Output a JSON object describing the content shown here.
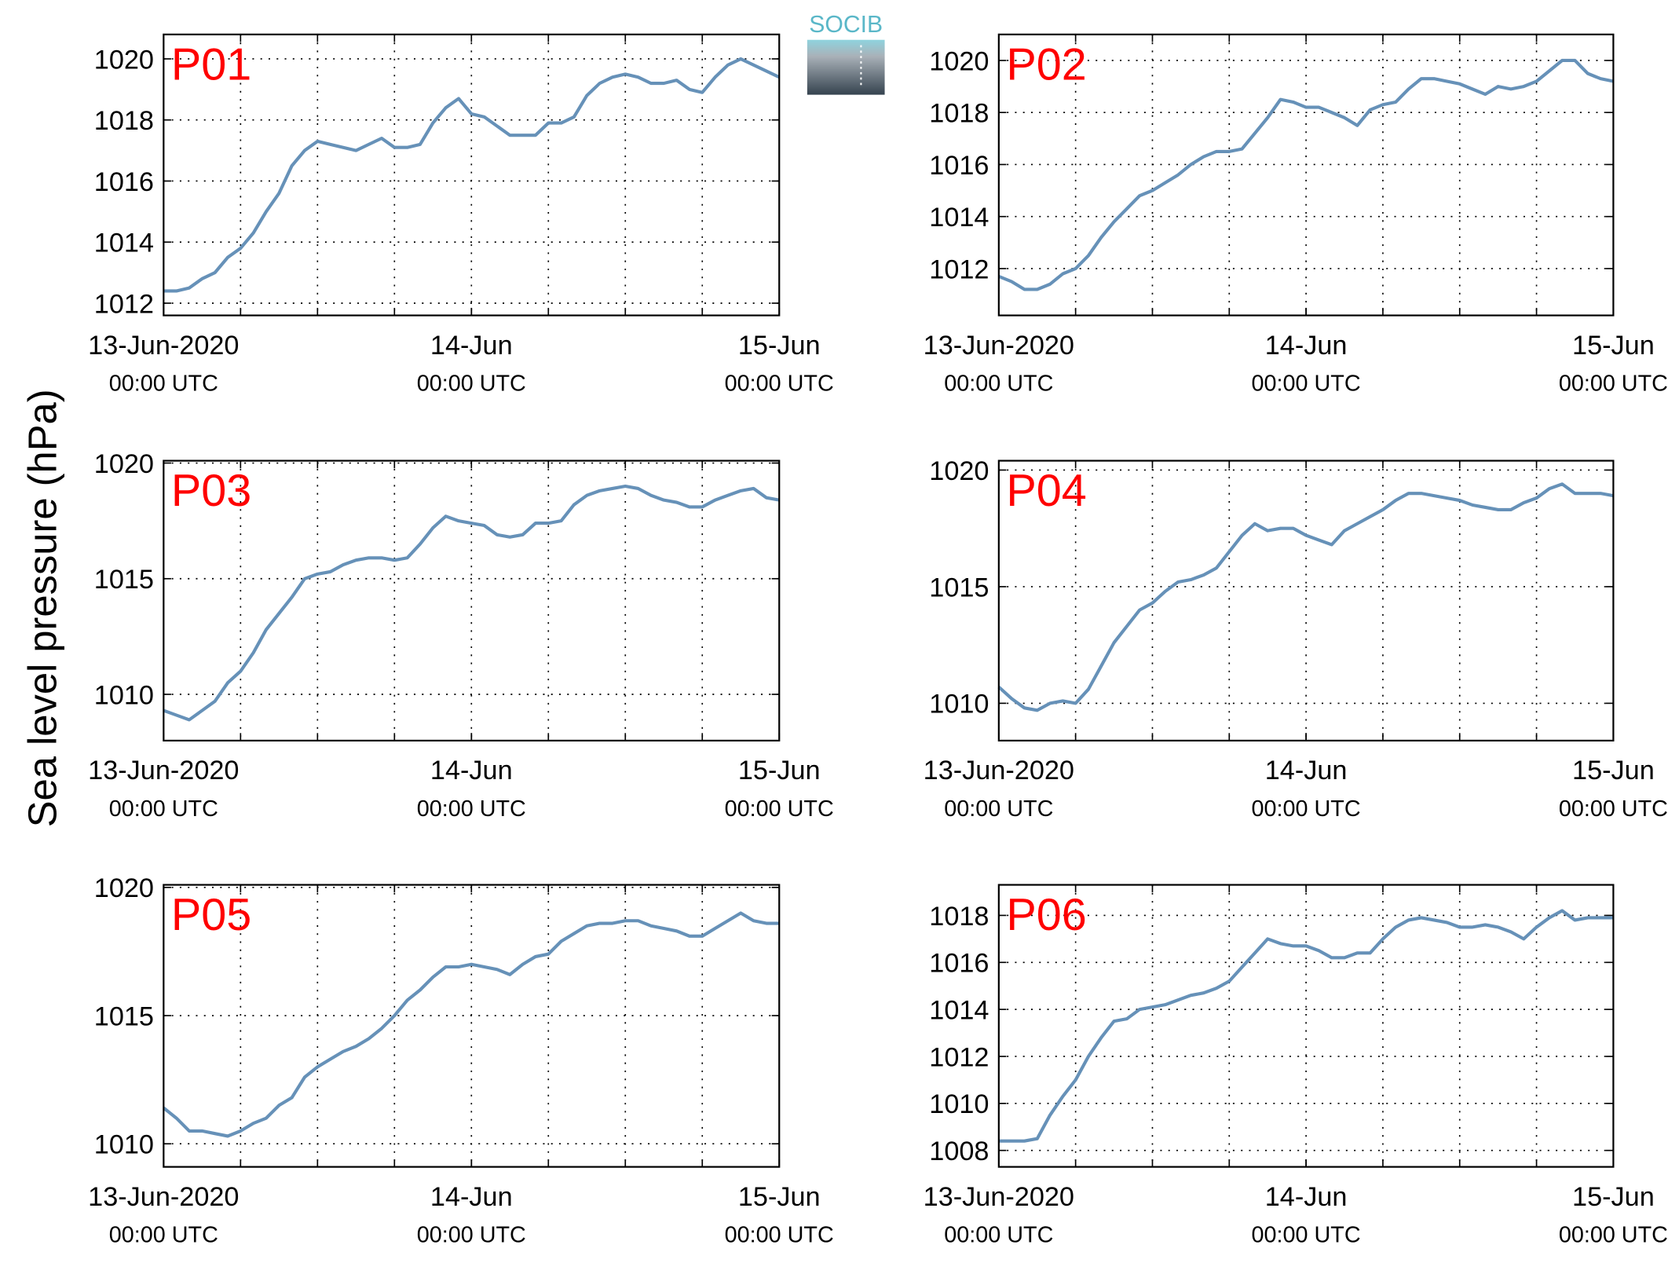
{
  "y_label": "Sea level pressure (hPa)",
  "logo": "SOCIB",
  "chart_data": [
    {
      "type": "line",
      "title": "P01",
      "color": "#6691b8",
      "grid": true,
      "x": [
        0,
        1,
        2,
        3,
        4,
        5,
        6,
        7,
        8,
        9,
        10,
        11,
        12,
        13,
        14,
        15,
        16,
        17,
        18,
        19,
        20,
        21,
        22,
        23,
        24,
        25,
        26,
        27,
        28,
        29,
        30,
        31,
        32,
        33,
        34,
        35,
        36,
        37,
        38,
        39,
        40,
        41,
        42,
        43,
        44,
        45,
        46,
        47,
        48
      ],
      "values": [
        1012.4,
        1012.4,
        1012.5,
        1012.8,
        1013.0,
        1013.5,
        1013.8,
        1014.3,
        1015.0,
        1015.6,
        1016.5,
        1017.0,
        1017.3,
        1017.2,
        1017.1,
        1017.0,
        1017.2,
        1017.4,
        1017.1,
        1017.1,
        1017.2,
        1017.9,
        1018.4,
        1018.7,
        1018.2,
        1018.1,
        1017.8,
        1017.5,
        1017.5,
        1017.5,
        1017.9,
        1017.9,
        1018.1,
        1018.8,
        1019.2,
        1019.4,
        1019.5,
        1019.4,
        1019.2,
        1019.2,
        1019.3,
        1019.0,
        1018.9,
        1019.4,
        1019.8,
        1020.0,
        1019.8,
        1019.6,
        1019.4
      ],
      "xlim": [
        0,
        48
      ],
      "xticks": [
        {
          "value": 0,
          "label": "13-Jun-2020",
          "sublabel": "00:00 UTC"
        },
        {
          "value": 24,
          "label": "14-Jun",
          "sublabel": "00:00 UTC"
        },
        {
          "value": 48,
          "label": "15-Jun",
          "sublabel": "00:00 UTC"
        }
      ],
      "xgrid": [
        6,
        12,
        18,
        24,
        30,
        36,
        42
      ],
      "ylim": [
        1011.6,
        1020.8
      ],
      "yticks": [
        1012,
        1014,
        1016,
        1018,
        1020
      ]
    },
    {
      "type": "line",
      "title": "P02",
      "color": "#6691b8",
      "grid": true,
      "x": [
        0,
        1,
        2,
        3,
        4,
        5,
        6,
        7,
        8,
        9,
        10,
        11,
        12,
        13,
        14,
        15,
        16,
        17,
        18,
        19,
        20,
        21,
        22,
        23,
        24,
        25,
        26,
        27,
        28,
        29,
        30,
        31,
        32,
        33,
        34,
        35,
        36,
        37,
        38,
        39,
        40,
        41,
        42,
        43,
        44,
        45,
        46,
        47,
        48
      ],
      "values": [
        1011.7,
        1011.5,
        1011.2,
        1011.2,
        1011.4,
        1011.8,
        1012.0,
        1012.5,
        1013.2,
        1013.8,
        1014.3,
        1014.8,
        1015.0,
        1015.3,
        1015.6,
        1016.0,
        1016.3,
        1016.5,
        1016.5,
        1016.6,
        1017.2,
        1017.8,
        1018.5,
        1018.4,
        1018.2,
        1018.2,
        1018.0,
        1017.8,
        1017.5,
        1018.1,
        1018.3,
        1018.4,
        1018.9,
        1019.3,
        1019.3,
        1019.2,
        1019.1,
        1018.9,
        1018.7,
        1019.0,
        1018.9,
        1019.0,
        1019.2,
        1019.6,
        1020.0,
        1020.0,
        1019.5,
        1019.3,
        1019.2
      ],
      "xlim": [
        0,
        48
      ],
      "xticks": [
        {
          "value": 0,
          "label": "13-Jun-2020",
          "sublabel": "00:00 UTC"
        },
        {
          "value": 24,
          "label": "14-Jun",
          "sublabel": "00:00 UTC"
        },
        {
          "value": 48,
          "label": "15-Jun",
          "sublabel": "00:00 UTC"
        }
      ],
      "xgrid": [
        6,
        12,
        18,
        24,
        30,
        36,
        42
      ],
      "ylim": [
        1010.2,
        1021.0
      ],
      "yticks": [
        1012,
        1014,
        1016,
        1018,
        1020
      ]
    },
    {
      "type": "line",
      "title": "P03",
      "color": "#6691b8",
      "grid": true,
      "x": [
        0,
        1,
        2,
        3,
        4,
        5,
        6,
        7,
        8,
        9,
        10,
        11,
        12,
        13,
        14,
        15,
        16,
        17,
        18,
        19,
        20,
        21,
        22,
        23,
        24,
        25,
        26,
        27,
        28,
        29,
        30,
        31,
        32,
        33,
        34,
        35,
        36,
        37,
        38,
        39,
        40,
        41,
        42,
        43,
        44,
        45,
        46,
        47,
        48
      ],
      "values": [
        1009.3,
        1009.1,
        1008.9,
        1009.3,
        1009.7,
        1010.5,
        1011.0,
        1011.8,
        1012.8,
        1013.5,
        1014.2,
        1015.0,
        1015.2,
        1015.3,
        1015.6,
        1015.8,
        1015.9,
        1015.9,
        1015.8,
        1015.9,
        1016.5,
        1017.2,
        1017.7,
        1017.5,
        1017.4,
        1017.3,
        1016.9,
        1016.8,
        1016.9,
        1017.4,
        1017.4,
        1017.5,
        1018.2,
        1018.6,
        1018.8,
        1018.9,
        1019.0,
        1018.9,
        1018.6,
        1018.4,
        1018.3,
        1018.1,
        1018.1,
        1018.4,
        1018.6,
        1018.8,
        1018.9,
        1018.5,
        1018.4
      ],
      "xlim": [
        0,
        48
      ],
      "xticks": [
        {
          "value": 0,
          "label": "13-Jun-2020",
          "sublabel": "00:00 UTC"
        },
        {
          "value": 24,
          "label": "14-Jun",
          "sublabel": "00:00 UTC"
        },
        {
          "value": 48,
          "label": "15-Jun",
          "sublabel": "00:00 UTC"
        }
      ],
      "xgrid": [
        6,
        12,
        18,
        24,
        30,
        36,
        42
      ],
      "ylim": [
        1008.0,
        1020.1
      ],
      "yticks": [
        1010,
        1015,
        1020
      ]
    },
    {
      "type": "line",
      "title": "P04",
      "color": "#6691b8",
      "grid": true,
      "x": [
        0,
        1,
        2,
        3,
        4,
        5,
        6,
        7,
        8,
        9,
        10,
        11,
        12,
        13,
        14,
        15,
        16,
        17,
        18,
        19,
        20,
        21,
        22,
        23,
        24,
        25,
        26,
        27,
        28,
        29,
        30,
        31,
        32,
        33,
        34,
        35,
        36,
        37,
        38,
        39,
        40,
        41,
        42,
        43,
        44,
        45,
        46,
        47,
        48
      ],
      "values": [
        1010.7,
        1010.2,
        1009.8,
        1009.7,
        1010.0,
        1010.1,
        1010.0,
        1010.6,
        1011.6,
        1012.6,
        1013.3,
        1014.0,
        1014.3,
        1014.8,
        1015.2,
        1015.3,
        1015.5,
        1015.8,
        1016.5,
        1017.2,
        1017.7,
        1017.4,
        1017.5,
        1017.5,
        1017.2,
        1017.0,
        1016.8,
        1017.4,
        1017.7,
        1018.0,
        1018.3,
        1018.7,
        1019.0,
        1019.0,
        1018.9,
        1018.8,
        1018.7,
        1018.5,
        1018.4,
        1018.3,
        1018.3,
        1018.6,
        1018.8,
        1019.2,
        1019.4,
        1019.0,
        1019.0,
        1019.0,
        1018.9
      ],
      "xlim": [
        0,
        48
      ],
      "xticks": [
        {
          "value": 0,
          "label": "13-Jun-2020",
          "sublabel": "00:00 UTC"
        },
        {
          "value": 24,
          "label": "14-Jun",
          "sublabel": "00:00 UTC"
        },
        {
          "value": 48,
          "label": "15-Jun",
          "sublabel": "00:00 UTC"
        }
      ],
      "xgrid": [
        6,
        12,
        18,
        24,
        30,
        36,
        42
      ],
      "ylim": [
        1008.4,
        1020.4
      ],
      "yticks": [
        1010,
        1015,
        1020
      ]
    },
    {
      "type": "line",
      "title": "P05",
      "color": "#6691b8",
      "grid": true,
      "x": [
        0,
        1,
        2,
        3,
        4,
        5,
        6,
        7,
        8,
        9,
        10,
        11,
        12,
        13,
        14,
        15,
        16,
        17,
        18,
        19,
        20,
        21,
        22,
        23,
        24,
        25,
        26,
        27,
        28,
        29,
        30,
        31,
        32,
        33,
        34,
        35,
        36,
        37,
        38,
        39,
        40,
        41,
        42,
        43,
        44,
        45,
        46,
        47,
        48
      ],
      "values": [
        1011.4,
        1011.0,
        1010.5,
        1010.5,
        1010.4,
        1010.3,
        1010.5,
        1010.8,
        1011.0,
        1011.5,
        1011.8,
        1012.6,
        1013.0,
        1013.3,
        1013.6,
        1013.8,
        1014.1,
        1014.5,
        1015.0,
        1015.6,
        1016.0,
        1016.5,
        1016.9,
        1016.9,
        1017.0,
        1016.9,
        1016.8,
        1016.6,
        1017.0,
        1017.3,
        1017.4,
        1017.9,
        1018.2,
        1018.5,
        1018.6,
        1018.6,
        1018.7,
        1018.7,
        1018.5,
        1018.4,
        1018.3,
        1018.1,
        1018.1,
        1018.4,
        1018.7,
        1019.0,
        1018.7,
        1018.6,
        1018.6
      ],
      "xlim": [
        0,
        48
      ],
      "xticks": [
        {
          "value": 0,
          "label": "13-Jun-2020",
          "sublabel": "00:00 UTC"
        },
        {
          "value": 24,
          "label": "14-Jun",
          "sublabel": "00:00 UTC"
        },
        {
          "value": 48,
          "label": "15-Jun",
          "sublabel": "00:00 UTC"
        }
      ],
      "xgrid": [
        6,
        12,
        18,
        24,
        30,
        36,
        42
      ],
      "ylim": [
        1009.1,
        1020.1
      ],
      "yticks": [
        1010,
        1015,
        1020
      ]
    },
    {
      "type": "line",
      "title": "P06",
      "color": "#6691b8",
      "grid": true,
      "x": [
        0,
        1,
        2,
        3,
        4,
        5,
        6,
        7,
        8,
        9,
        10,
        11,
        12,
        13,
        14,
        15,
        16,
        17,
        18,
        19,
        20,
        21,
        22,
        23,
        24,
        25,
        26,
        27,
        28,
        29,
        30,
        31,
        32,
        33,
        34,
        35,
        36,
        37,
        38,
        39,
        40,
        41,
        42,
        43,
        44,
        45,
        46,
        47,
        48
      ],
      "values": [
        1008.4,
        1008.4,
        1008.4,
        1008.5,
        1009.5,
        1010.3,
        1011.0,
        1012.0,
        1012.8,
        1013.5,
        1013.6,
        1014.0,
        1014.1,
        1014.2,
        1014.4,
        1014.6,
        1014.7,
        1014.9,
        1015.2,
        1015.8,
        1016.4,
        1017.0,
        1016.8,
        1016.7,
        1016.7,
        1016.5,
        1016.2,
        1016.2,
        1016.4,
        1016.4,
        1017.0,
        1017.5,
        1017.8,
        1017.9,
        1017.8,
        1017.7,
        1017.5,
        1017.5,
        1017.6,
        1017.5,
        1017.3,
        1017.0,
        1017.5,
        1017.9,
        1018.2,
        1017.8,
        1017.9,
        1017.9,
        1017.9
      ],
      "xlim": [
        0,
        48
      ],
      "xticks": [
        {
          "value": 0,
          "label": "13-Jun-2020",
          "sublabel": "00:00 UTC"
        },
        {
          "value": 24,
          "label": "14-Jun",
          "sublabel": "00:00 UTC"
        },
        {
          "value": 48,
          "label": "15-Jun",
          "sublabel": "00:00 UTC"
        }
      ],
      "xgrid": [
        6,
        12,
        18,
        24,
        30,
        36,
        42
      ],
      "ylim": [
        1007.3,
        1019.3
      ],
      "yticks": [
        1008,
        1010,
        1012,
        1014,
        1016,
        1018
      ]
    }
  ]
}
